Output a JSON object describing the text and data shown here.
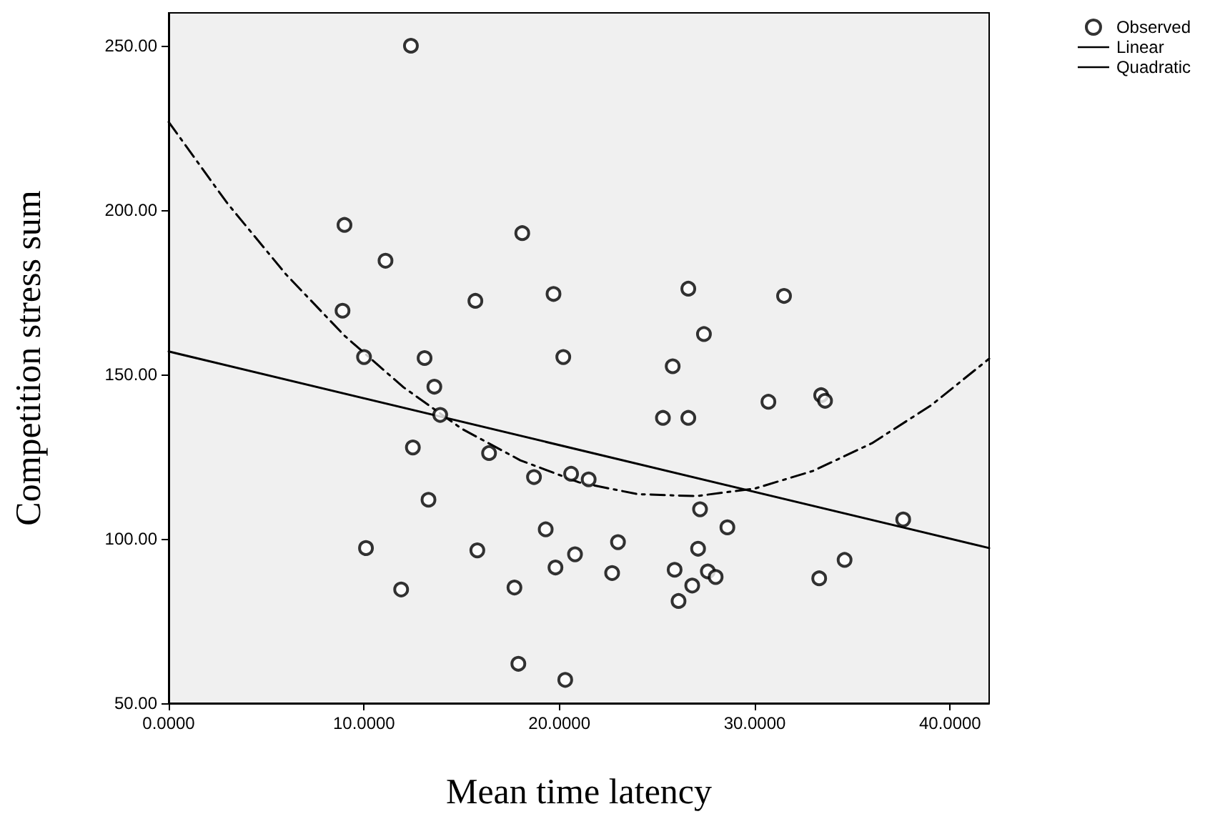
{
  "chart_data": {
    "type": "scatter",
    "xlabel": "Mean time latency",
    "ylabel": "Competition stress sum",
    "xlim": [
      0,
      42
    ],
    "ylim": [
      50,
      260
    ],
    "xticks": [
      {
        "value": 0,
        "label": "0.0000"
      },
      {
        "value": 10,
        "label": "10.0000"
      },
      {
        "value": 20,
        "label": "20.0000"
      },
      {
        "value": 30,
        "label": "30.0000"
      },
      {
        "value": 40,
        "label": "40.0000"
      }
    ],
    "yticks": [
      {
        "value": 50,
        "label": "50.00"
      },
      {
        "value": 100,
        "label": "100.00"
      },
      {
        "value": 150,
        "label": "150.00"
      },
      {
        "value": 200,
        "label": "200.00"
      },
      {
        "value": 250,
        "label": "250.00"
      }
    ],
    "grid": false,
    "legend": "top right",
    "series": [
      {
        "name": "Observed",
        "marker": "circle",
        "color": "#000000",
        "x": [
          12.4,
          9.0,
          11.1,
          18.1,
          15.7,
          19.7,
          8.9,
          10.0,
          13.1,
          26.6,
          31.5,
          27.4,
          20.2,
          25.8,
          13.6,
          13.9,
          12.5,
          16.4,
          18.7,
          13.3,
          19.3,
          10.1,
          15.8,
          11.9,
          17.7,
          19.8,
          17.9,
          20.3,
          30.7,
          33.4,
          33.6,
          25.3,
          26.6,
          20.6,
          21.5,
          27.2,
          28.6,
          37.6,
          23.0,
          20.8,
          22.7,
          27.1,
          25.9,
          27.6,
          28.0,
          26.8,
          26.1,
          34.6,
          33.3
        ],
        "values": [
          250,
          195.5,
          184.6,
          193.0,
          172.4,
          174.5,
          169.4,
          155.3,
          155.0,
          176.1,
          173.9,
          162.3,
          155.3,
          152.5,
          146.3,
          137.7,
          127.8,
          126.1,
          118.8,
          111.9,
          102.9,
          97.2,
          96.5,
          84.6,
          85.2,
          91.3,
          62.0,
          57.1,
          141.7,
          143.7,
          142.0,
          136.8,
          136.8,
          119.8,
          118.1,
          109.0,
          103.5,
          105.9,
          99.0,
          95.3,
          89.6,
          97.0,
          90.6,
          90.1,
          88.4,
          85.8,
          81.1,
          93.6,
          88.0
        ]
      },
      {
        "name": "Linear",
        "type": "line",
        "marker": "none",
        "line_style": "solid",
        "color": "#000000",
        "x": [
          0,
          42
        ],
        "values": [
          157,
          97.2
        ]
      },
      {
        "name": "Quadratic",
        "type": "line",
        "marker": "none",
        "line_style": "dashed",
        "color": "#000000",
        "x": [
          0,
          3,
          6,
          9,
          12,
          15,
          18,
          21,
          24,
          27,
          30,
          33,
          36,
          39,
          42
        ],
        "values": [
          226.8,
          202.1,
          180.5,
          161.8,
          146.2,
          133.5,
          123.9,
          117.2,
          113.6,
          113.0,
          115.3,
          120.7,
          129.1,
          140.5,
          154.8
        ]
      }
    ]
  }
}
